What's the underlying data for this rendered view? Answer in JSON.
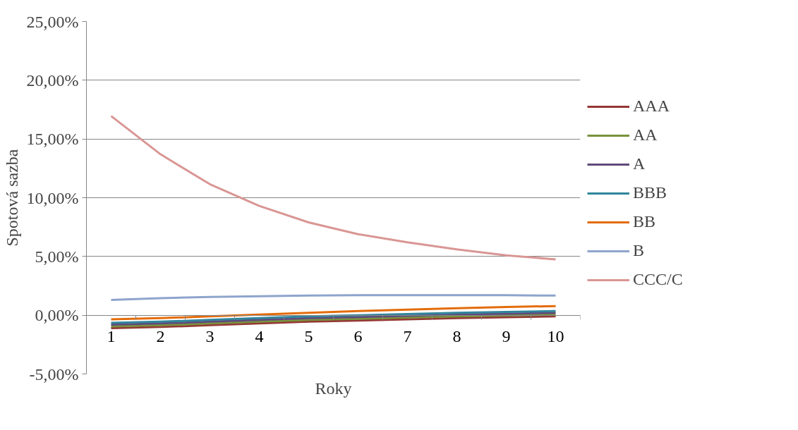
{
  "chart_data": {
    "type": "line",
    "xlabel": "Roky",
    "ylabel": "Spotová sazba",
    "categories": [
      "1",
      "2",
      "3",
      "4",
      "5",
      "6",
      "7",
      "8",
      "9",
      "10"
    ],
    "ylim": [
      -5,
      25
    ],
    "yticks": [
      {
        "value": -5,
        "label": "-5,00%"
      },
      {
        "value": 0,
        "label": "0,00%"
      },
      {
        "value": 5,
        "label": "5,00%"
      },
      {
        "value": 10,
        "label": "10,00%"
      },
      {
        "value": 15,
        "label": "15,00%"
      },
      {
        "value": 20,
        "label": "20,00%"
      },
      {
        "value": 25,
        "label": "25,00%"
      }
    ],
    "grid": "y",
    "legend": "right",
    "marker": "none",
    "line_style": "solid",
    "series": [
      {
        "name": "AAA",
        "color": "#953735",
        "values": [
          -1.1,
          -1.0,
          -0.85,
          -0.7,
          -0.55,
          -0.45,
          -0.35,
          -0.25,
          -0.17,
          -0.1
        ]
      },
      {
        "name": "AA",
        "color": "#77933c",
        "values": [
          -0.95,
          -0.85,
          -0.7,
          -0.55,
          -0.4,
          -0.3,
          -0.2,
          -0.1,
          -0.02,
          0.05
        ]
      },
      {
        "name": "A",
        "color": "#604a7b",
        "values": [
          -0.8,
          -0.7,
          -0.55,
          -0.4,
          -0.25,
          -0.15,
          -0.05,
          0.05,
          0.13,
          0.2
        ]
      },
      {
        "name": "BBB",
        "color": "#31859c",
        "values": [
          -0.65,
          -0.55,
          -0.4,
          -0.25,
          -0.1,
          0.0,
          0.1,
          0.2,
          0.28,
          0.35
        ]
      },
      {
        "name": "BB",
        "color": "#e46c0a",
        "values": [
          -0.35,
          -0.25,
          -0.1,
          0.05,
          0.2,
          0.35,
          0.48,
          0.6,
          0.7,
          0.78
        ]
      },
      {
        "name": "B",
        "color": "#8ea4cc",
        "values": [
          1.3,
          1.45,
          1.55,
          1.62,
          1.67,
          1.7,
          1.71,
          1.71,
          1.7,
          1.67
        ]
      },
      {
        "name": "CCC/C",
        "color": "#d99694",
        "values": [
          16.95,
          13.7,
          11.15,
          9.3,
          7.9,
          6.9,
          6.2,
          5.6,
          5.1,
          4.75
        ]
      }
    ]
  }
}
